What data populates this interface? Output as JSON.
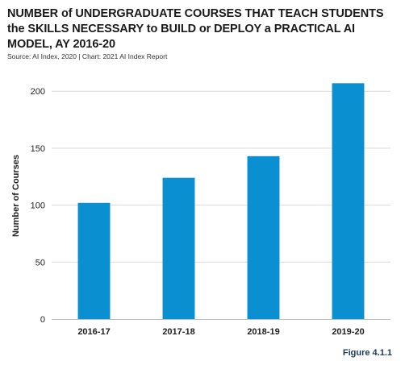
{
  "header": {
    "title": "NUMBER of UNDERGRADUATE COURSES THAT TEACH STUDENTS the SKILLS NECESSARY to BUILD or DEPLOY a PRACTICAL AI MODEL, AY 2016-20",
    "source": "Source: AI Index, 2020 | Chart: 2021 AI Index Report"
  },
  "figure_label": "Figure 4.1.1",
  "chart_data": {
    "type": "bar",
    "title": "NUMBER of UNDERGRADUATE COURSES THAT TEACH STUDENTS the SKILLS NECESSARY to BUILD or DEPLOY a PRACTICAL AI MODEL, AY 2016-20",
    "categories": [
      "2016-17",
      "2017-18",
      "2018-19",
      "2019-20"
    ],
    "values": [
      102,
      124,
      143,
      207
    ],
    "xlabel": "",
    "ylabel": "Number of Courses",
    "ylim": [
      0,
      215
    ],
    "yticks": [
      0,
      50,
      100,
      150,
      200
    ],
    "grid": true,
    "bar_color": "#0a8fd1",
    "grid_color": "#d9d9d9"
  }
}
